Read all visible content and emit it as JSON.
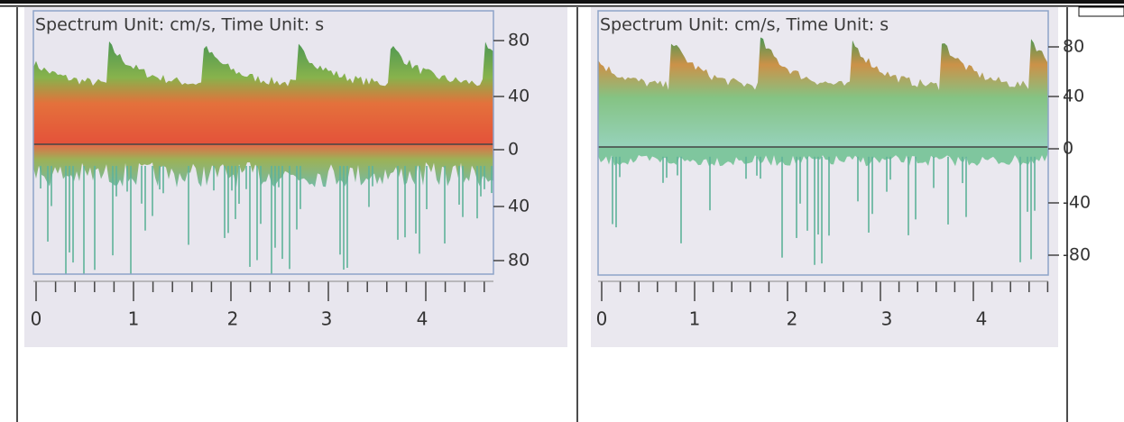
{
  "table": {
    "cells": [
      {
        "caption": "Spectrum Unit: cm/s, Time Unit: s",
        "y_labels": [
          "80",
          "40",
          "0",
          "40",
          "80"
        ],
        "x_labels": [
          "0",
          "1",
          "2",
          "3",
          "4"
        ]
      },
      {
        "caption": "Spectrum Unit: cm/s, Time Unit: s",
        "y_labels": [
          "80",
          "40",
          "0",
          "-40",
          "-80"
        ],
        "x_labels": [
          "0",
          "1",
          "2",
          "3",
          "4"
        ]
      }
    ]
  }
}
